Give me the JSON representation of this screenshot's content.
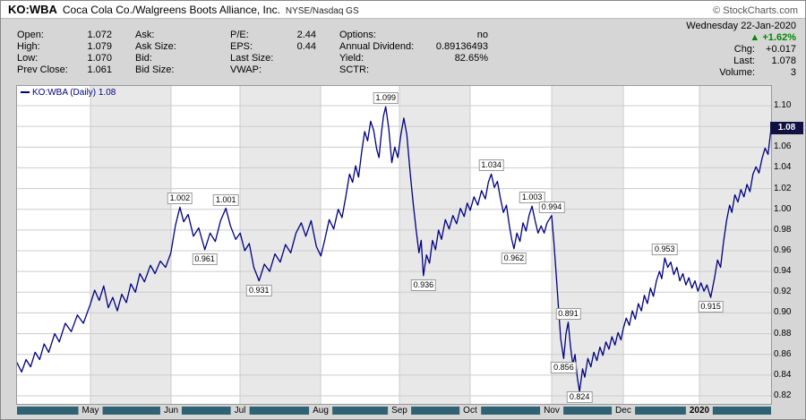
{
  "header": {
    "symbol": "KO:WBA",
    "company": "Coca Cola Co./Walgreens Boots Alliance, Inc.",
    "exchange": "NYSE/Nasdaq GS",
    "copyright": "© StockCharts.com"
  },
  "quote_panel": {
    "accent_green": "#008800",
    "columns": [
      [
        {
          "label": "Open:",
          "value": "1.072"
        },
        {
          "label": "High:",
          "value": "1.079"
        },
        {
          "label": "Low:",
          "value": "1.070"
        },
        {
          "label": "Prev Close:",
          "value": "1.061"
        }
      ],
      [
        {
          "label": "Ask:",
          "value": ""
        },
        {
          "label": "Ask Size:",
          "value": ""
        },
        {
          "label": "Bid:",
          "value": ""
        },
        {
          "label": "Bid Size:",
          "value": ""
        }
      ],
      [
        {
          "label": "P/E:",
          "value": "2.44"
        },
        {
          "label": "EPS:",
          "value": "0.44"
        },
        {
          "label": "Last Size:",
          "value": ""
        },
        {
          "label": "VWAP:",
          "value": ""
        }
      ],
      [
        {
          "label": "Options:",
          "value": "no"
        },
        {
          "label": "Annual Dividend:",
          "value": "0.89136493"
        },
        {
          "label": "Yield:",
          "value": "82.65%"
        },
        {
          "label": "SCTR:",
          "value": ""
        }
      ]
    ],
    "right": {
      "date": "Wednesday 22-Jan-2020",
      "up_arrow": "▲",
      "change_pct": "+1.62%",
      "chg_label": "Chg:",
      "chg_value": "+0.017",
      "last_label": "Last:",
      "last_value": "1.078",
      "volume_label": "Volume:",
      "volume_value": "3"
    }
  },
  "chart_data": {
    "type": "line",
    "title": "KO:WBA (Daily)",
    "legend": "KO:WBA (Daily) 1.08",
    "last_price": "1.08",
    "line_color": "#000080",
    "badge_bg": "#101042",
    "axis_bar_color": "#2f6373",
    "grid": true,
    "ylim": [
      0.82,
      1.1
    ],
    "y_ticks": [
      1.1,
      1.08,
      1.06,
      1.04,
      1.02,
      1.0,
      0.98,
      0.96,
      0.94,
      0.92,
      0.9,
      0.88,
      0.86,
      0.84,
      0.82
    ],
    "x_months": [
      {
        "label": "May",
        "t": 0.0974
      },
      {
        "label": "Jun",
        "t": 0.2043
      },
      {
        "label": "Jul",
        "t": 0.2957
      },
      {
        "label": "Aug",
        "t": 0.4026
      },
      {
        "label": "Sep",
        "t": 0.5071
      },
      {
        "label": "Oct",
        "t": 0.6009
      },
      {
        "label": "Nov",
        "t": 0.709
      },
      {
        "label": "Dec",
        "t": 0.804
      },
      {
        "label": "2020",
        "t": 0.905
      }
    ],
    "annotations": [
      {
        "label": "1.002",
        "t": 0.216,
        "v": 1.002,
        "side": "above"
      },
      {
        "label": "0.961",
        "t": 0.249,
        "v": 0.961,
        "side": "below"
      },
      {
        "label": "1.001",
        "t": 0.277,
        "v": 1.001,
        "side": "above"
      },
      {
        "label": "0.931",
        "t": 0.321,
        "v": 0.931,
        "side": "below"
      },
      {
        "label": "1.099",
        "t": 0.489,
        "v": 1.099,
        "side": "above"
      },
      {
        "label": "0.936",
        "t": 0.539,
        "v": 0.936,
        "side": "below"
      },
      {
        "label": "1.034",
        "t": 0.629,
        "v": 1.034,
        "side": "above"
      },
      {
        "label": "0.962",
        "t": 0.659,
        "v": 0.962,
        "side": "below"
      },
      {
        "label": "1.003",
        "t": 0.683,
        "v": 1.003,
        "side": "above"
      },
      {
        "label": "0.994",
        "t": 0.709,
        "v": 0.994,
        "side": "above"
      },
      {
        "label": "0.856",
        "t": 0.725,
        "v": 0.856,
        "side": "below"
      },
      {
        "label": "0.891",
        "t": 0.731,
        "v": 0.891,
        "side": "above"
      },
      {
        "label": "0.824",
        "t": 0.746,
        "v": 0.824,
        "side": "below"
      },
      {
        "label": "0.953",
        "t": 0.859,
        "v": 0.953,
        "side": "above"
      },
      {
        "label": "0.915",
        "t": 0.92,
        "v": 0.915,
        "side": "below"
      }
    ],
    "points": [
      [
        0.0,
        0.852
      ],
      [
        0.006,
        0.843
      ],
      [
        0.012,
        0.855
      ],
      [
        0.018,
        0.848
      ],
      [
        0.024,
        0.862
      ],
      [
        0.03,
        0.855
      ],
      [
        0.036,
        0.87
      ],
      [
        0.042,
        0.862
      ],
      [
        0.05,
        0.88
      ],
      [
        0.056,
        0.872
      ],
      [
        0.064,
        0.89
      ],
      [
        0.072,
        0.882
      ],
      [
        0.08,
        0.898
      ],
      [
        0.088,
        0.89
      ],
      [
        0.097,
        0.908
      ],
      [
        0.103,
        0.922
      ],
      [
        0.109,
        0.912
      ],
      [
        0.115,
        0.926
      ],
      [
        0.121,
        0.905
      ],
      [
        0.127,
        0.915
      ],
      [
        0.133,
        0.902
      ],
      [
        0.139,
        0.918
      ],
      [
        0.145,
        0.91
      ],
      [
        0.151,
        0.928
      ],
      [
        0.157,
        0.92
      ],
      [
        0.163,
        0.938
      ],
      [
        0.169,
        0.93
      ],
      [
        0.177,
        0.946
      ],
      [
        0.183,
        0.938
      ],
      [
        0.19,
        0.95
      ],
      [
        0.197,
        0.944
      ],
      [
        0.204,
        0.958
      ],
      [
        0.21,
        0.984
      ],
      [
        0.216,
        1.002
      ],
      [
        0.221,
        0.988
      ],
      [
        0.227,
        0.995
      ],
      [
        0.234,
        0.974
      ],
      [
        0.241,
        0.982
      ],
      [
        0.249,
        0.961
      ],
      [
        0.256,
        0.977
      ],
      [
        0.263,
        0.969
      ],
      [
        0.27,
        0.989
      ],
      [
        0.277,
        1.001
      ],
      [
        0.283,
        0.984
      ],
      [
        0.29,
        0.971
      ],
      [
        0.296,
        0.977
      ],
      [
        0.302,
        0.96
      ],
      [
        0.308,
        0.967
      ],
      [
        0.314,
        0.944
      ],
      [
        0.321,
        0.931
      ],
      [
        0.328,
        0.947
      ],
      [
        0.335,
        0.94
      ],
      [
        0.342,
        0.957
      ],
      [
        0.349,
        0.949
      ],
      [
        0.356,
        0.966
      ],
      [
        0.363,
        0.958
      ],
      [
        0.37,
        0.977
      ],
      [
        0.377,
        0.987
      ],
      [
        0.383,
        0.974
      ],
      [
        0.39,
        0.989
      ],
      [
        0.397,
        0.964
      ],
      [
        0.403,
        0.955
      ],
      [
        0.408,
        0.97
      ],
      [
        0.414,
        0.99
      ],
      [
        0.42,
        0.981
      ],
      [
        0.426,
        1.0
      ],
      [
        0.431,
        0.992
      ],
      [
        0.436,
        1.012
      ],
      [
        0.441,
        1.034
      ],
      [
        0.445,
        1.026
      ],
      [
        0.449,
        1.042
      ],
      [
        0.453,
        1.031
      ],
      [
        0.457,
        1.055
      ],
      [
        0.461,
        1.075
      ],
      [
        0.465,
        1.066
      ],
      [
        0.469,
        1.085
      ],
      [
        0.473,
        1.076
      ],
      [
        0.477,
        1.058
      ],
      [
        0.48,
        1.05
      ],
      [
        0.483,
        1.072
      ],
      [
        0.486,
        1.09
      ],
      [
        0.489,
        1.099
      ],
      [
        0.493,
        1.078
      ],
      [
        0.497,
        1.045
      ],
      [
        0.501,
        1.06
      ],
      [
        0.505,
        1.05
      ],
      [
        0.509,
        1.072
      ],
      [
        0.513,
        1.088
      ],
      [
        0.517,
        1.072
      ],
      [
        0.521,
        1.038
      ],
      [
        0.525,
        1.008
      ],
      [
        0.529,
        0.982
      ],
      [
        0.533,
        0.958
      ],
      [
        0.536,
        0.97
      ],
      [
        0.539,
        0.936
      ],
      [
        0.543,
        0.956
      ],
      [
        0.547,
        0.948
      ],
      [
        0.551,
        0.97
      ],
      [
        0.555,
        0.961
      ],
      [
        0.559,
        0.98
      ],
      [
        0.563,
        0.971
      ],
      [
        0.568,
        0.99
      ],
      [
        0.573,
        0.981
      ],
      [
        0.578,
        0.994
      ],
      [
        0.583,
        0.986
      ],
      [
        0.588,
        1.001
      ],
      [
        0.593,
        0.993
      ],
      [
        0.597,
        1.006
      ],
      [
        0.601,
        0.999
      ],
      [
        0.606,
        1.012
      ],
      [
        0.611,
        1.004
      ],
      [
        0.616,
        1.018
      ],
      [
        0.621,
        1.01
      ],
      [
        0.625,
        1.026
      ],
      [
        0.629,
        1.034
      ],
      [
        0.633,
        1.021
      ],
      [
        0.637,
        1.027
      ],
      [
        0.641,
        1.011
      ],
      [
        0.645,
        0.997
      ],
      [
        0.649,
        1.004
      ],
      [
        0.653,
        0.984
      ],
      [
        0.656,
        0.971
      ],
      [
        0.659,
        0.962
      ],
      [
        0.663,
        0.977
      ],
      [
        0.667,
        0.969
      ],
      [
        0.671,
        0.987
      ],
      [
        0.675,
        0.979
      ],
      [
        0.679,
        0.994
      ],
      [
        0.683,
        1.003
      ],
      [
        0.687,
        0.989
      ],
      [
        0.691,
        0.977
      ],
      [
        0.695,
        0.984
      ],
      [
        0.699,
        0.977
      ],
      [
        0.703,
        0.987
      ],
      [
        0.709,
        0.994
      ],
      [
        0.712,
        0.968
      ],
      [
        0.715,
        0.938
      ],
      [
        0.718,
        0.905
      ],
      [
        0.721,
        0.875
      ],
      [
        0.725,
        0.856
      ],
      [
        0.728,
        0.88
      ],
      [
        0.731,
        0.891
      ],
      [
        0.734,
        0.868
      ],
      [
        0.737,
        0.85
      ],
      [
        0.74,
        0.86
      ],
      [
        0.743,
        0.838
      ],
      [
        0.746,
        0.824
      ],
      [
        0.75,
        0.846
      ],
      [
        0.753,
        0.838
      ],
      [
        0.757,
        0.856
      ],
      [
        0.761,
        0.848
      ],
      [
        0.765,
        0.862
      ],
      [
        0.769,
        0.854
      ],
      [
        0.773,
        0.867
      ],
      [
        0.777,
        0.859
      ],
      [
        0.781,
        0.872
      ],
      [
        0.785,
        0.865
      ],
      [
        0.789,
        0.877
      ],
      [
        0.793,
        0.869
      ],
      [
        0.797,
        0.881
      ],
      [
        0.801,
        0.874
      ],
      [
        0.804,
        0.885
      ],
      [
        0.808,
        0.895
      ],
      [
        0.812,
        0.888
      ],
      [
        0.816,
        0.902
      ],
      [
        0.82,
        0.894
      ],
      [
        0.824,
        0.909
      ],
      [
        0.828,
        0.902
      ],
      [
        0.832,
        0.917
      ],
      [
        0.836,
        0.909
      ],
      [
        0.84,
        0.924
      ],
      [
        0.844,
        0.916
      ],
      [
        0.848,
        0.931
      ],
      [
        0.852,
        0.94
      ],
      [
        0.855,
        0.933
      ],
      [
        0.859,
        0.953
      ],
      [
        0.863,
        0.944
      ],
      [
        0.867,
        0.949
      ],
      [
        0.871,
        0.937
      ],
      [
        0.875,
        0.944
      ],
      [
        0.879,
        0.931
      ],
      [
        0.883,
        0.938
      ],
      [
        0.887,
        0.927
      ],
      [
        0.891,
        0.934
      ],
      [
        0.895,
        0.924
      ],
      [
        0.899,
        0.931
      ],
      [
        0.903,
        0.921
      ],
      [
        0.907,
        0.929
      ],
      [
        0.911,
        0.921
      ],
      [
        0.915,
        0.927
      ],
      [
        0.92,
        0.915
      ],
      [
        0.925,
        0.934
      ],
      [
        0.929,
        0.951
      ],
      [
        0.933,
        0.944
      ],
      [
        0.937,
        0.969
      ],
      [
        0.941,
        0.989
      ],
      [
        0.945,
        1.004
      ],
      [
        0.948,
        0.997
      ],
      [
        0.952,
        1.014
      ],
      [
        0.956,
        1.007
      ],
      [
        0.96,
        1.019
      ],
      [
        0.964,
        1.012
      ],
      [
        0.968,
        1.024
      ],
      [
        0.972,
        1.017
      ],
      [
        0.976,
        1.034
      ],
      [
        0.98,
        1.041
      ],
      [
        0.984,
        1.035
      ],
      [
        0.988,
        1.049
      ],
      [
        0.992,
        1.059
      ],
      [
        0.996,
        1.053
      ],
      [
        1.0,
        1.078
      ]
    ]
  }
}
